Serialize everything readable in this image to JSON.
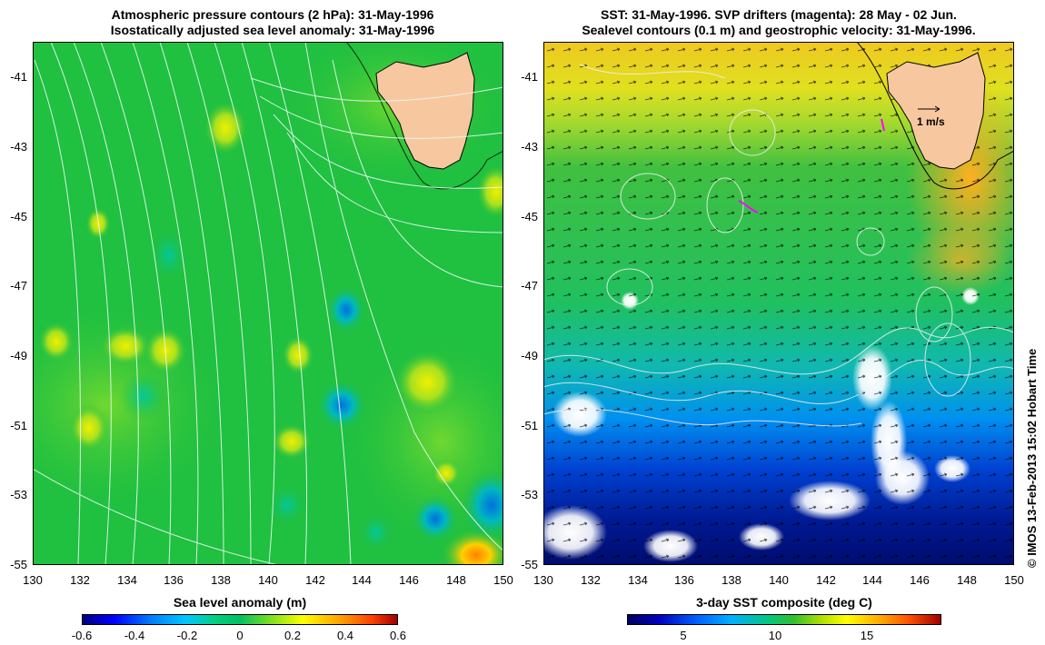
{
  "left_panel": {
    "title_line1": "Atmospheric pressure contours (2 hPa): 31-May-1996",
    "title_line2": "Isostatically adjusted sea level anomaly: 31-May-1996",
    "colorbar_title": "Sea level anomaly (m)",
    "colorbar_ticks": [
      "-0.6",
      "-0.4",
      "-0.2",
      "0",
      "0.2",
      "0.4",
      "0.6"
    ],
    "colorbar_range": [
      -0.6,
      0.6
    ],
    "colors": {
      "background": "#20c040",
      "land": "#f7c8a0",
      "contour": "#e8f8f0"
    }
  },
  "right_panel": {
    "title_line1": "SST: 31-May-1996. SVP drifters (magenta): 28 May - 02 Jun.",
    "title_line2": "Sealevel contours (0.1 m) and geostrophic velocity: 31-May-1996.",
    "colorbar_title": "3-day SST composite (deg C)",
    "colorbar_ticks": [
      "5",
      "10",
      "15"
    ],
    "colorbar_range": [
      2,
      19
    ],
    "scale_label": "1 m/s",
    "colors": {
      "warm": "#f0c020",
      "mid": "#20c050",
      "cool": "#0080e0",
      "cold": "#001080",
      "land": "#f7c8a0",
      "drifters": "#ff00ff"
    }
  },
  "axes": {
    "lon_ticks": [
      "130",
      "132",
      "134",
      "136",
      "138",
      "140",
      "142",
      "144",
      "146",
      "148",
      "150"
    ],
    "lat_ticks": [
      "-41",
      "-43",
      "-45",
      "-47",
      "-49",
      "-51",
      "-53",
      "-55"
    ],
    "lon_range": [
      130,
      150
    ],
    "lat_range": [
      -55,
      -40
    ]
  },
  "credit": "© IMOS 13-Feb-2013 15:02 Hobart Time"
}
